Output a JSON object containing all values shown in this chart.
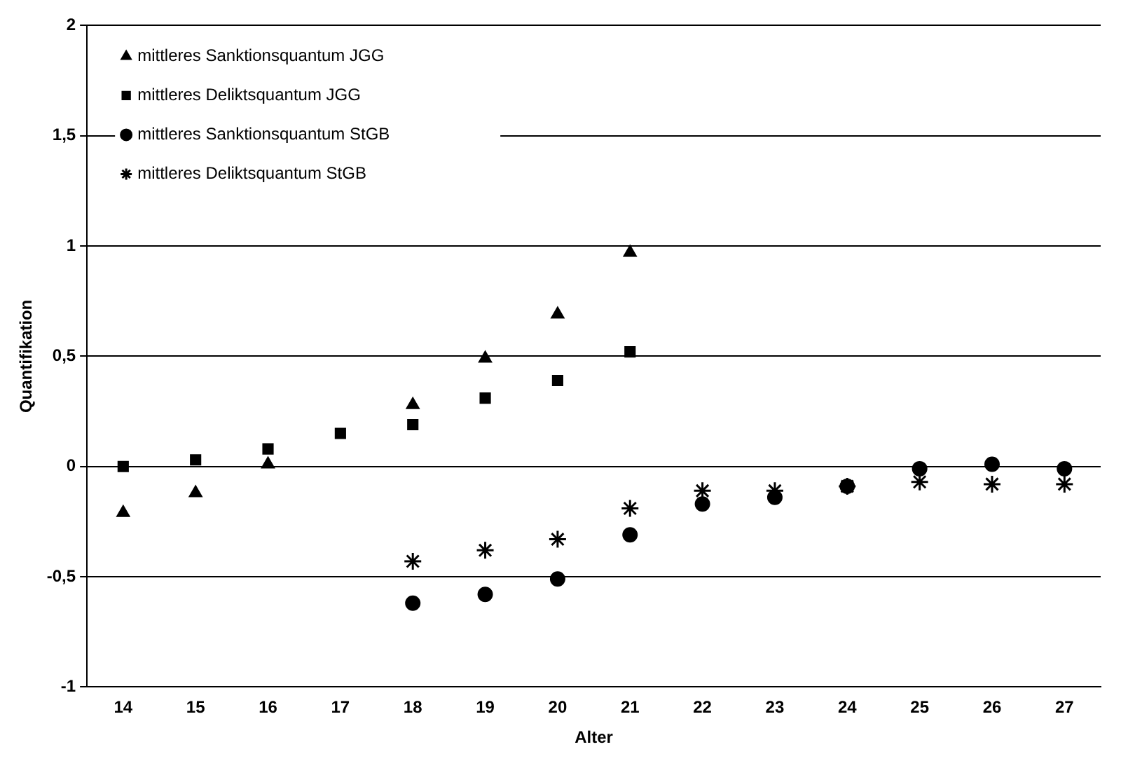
{
  "chart_data": {
    "type": "scatter",
    "xlabel": "Alter",
    "ylabel": "Quantifikation",
    "categories": [
      "14",
      "15",
      "16",
      "17",
      "18",
      "19",
      "20",
      "21",
      "22",
      "23",
      "24",
      "25",
      "26",
      "27"
    ],
    "ylim": [
      -1,
      2
    ],
    "yticks": [
      -1,
      {
        "value": -0.5,
        "label": "-0,5"
      },
      0,
      {
        "value": 0.5,
        "label": "0,5"
      },
      1,
      {
        "value": 1.5,
        "label": "1,5"
      },
      2
    ],
    "grid": "y",
    "legend": "top left",
    "series": [
      {
        "name": "mittleres Sanktionsquantum JGG",
        "color": "#000000",
        "marker": "triangle",
        "values": [
          -0.21,
          -0.12,
          0.01,
          null,
          0.28,
          0.49,
          0.69,
          0.97,
          null,
          null,
          null,
          null,
          null,
          null
        ]
      },
      {
        "name": "mittleres Deliktsquantum JGG",
        "color": "#000000",
        "marker": "square",
        "values": [
          0.0,
          0.03,
          0.08,
          0.15,
          0.19,
          0.31,
          0.39,
          0.52,
          null,
          null,
          null,
          null,
          null,
          null
        ]
      },
      {
        "name": "mittleres Sanktionsquantum StGB",
        "color": "#000000",
        "marker": "circle",
        "values": [
          null,
          null,
          null,
          null,
          -0.62,
          -0.58,
          -0.51,
          -0.31,
          -0.17,
          -0.14,
          -0.09,
          -0.01,
          0.01,
          -0.01
        ]
      },
      {
        "name": "mittleres Deliktsquantum StGB",
        "color": "#000000",
        "marker": "cross",
        "values": [
          null,
          null,
          null,
          null,
          -0.43,
          -0.38,
          -0.33,
          -0.19,
          -0.11,
          -0.11,
          -0.09,
          -0.07,
          -0.08,
          -0.08
        ]
      }
    ]
  }
}
